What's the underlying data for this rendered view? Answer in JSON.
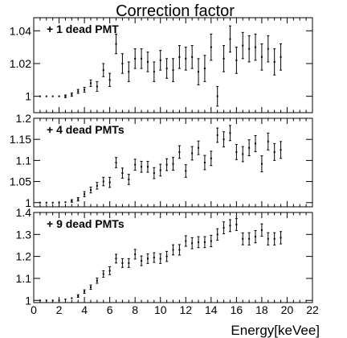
{
  "chart_data": {
    "title": "Correction factor",
    "xlabel": "Energy[keVee]",
    "x_ticks": [
      "0",
      "2",
      "4",
      "6",
      "8",
      "10",
      "12",
      "14",
      "16",
      "18",
      "20",
      "22"
    ],
    "xlim": [
      0,
      22
    ],
    "panels": [
      {
        "type": "scatter",
        "label": "+ 1 dead PMT",
        "ylim": [
          0.99,
          1.048
        ],
        "y_ticks": [
          {
            "value": 1.0,
            "label": "1"
          },
          {
            "value": 1.02,
            "label": "1.02"
          },
          {
            "value": 1.04,
            "label": "1.04"
          }
        ],
        "x": [
          0.5,
          1.0,
          1.5,
          2.0,
          2.5,
          3.0,
          3.5,
          4.0,
          4.5,
          5.0,
          5.5,
          6.0,
          6.5,
          7.0,
          7.5,
          8.0,
          8.5,
          9.0,
          9.5,
          10.0,
          10.5,
          11.0,
          11.5,
          12.0,
          12.5,
          13.0,
          13.5,
          14.0,
          14.5,
          15.0,
          15.5,
          16.0,
          16.5,
          17.0,
          17.5,
          18.0,
          18.5,
          19.0,
          19.5
        ],
        "y": [
          1.0,
          1.0,
          1.0,
          1.0,
          1.0,
          1.001,
          1.003,
          1.004,
          1.008,
          1.006,
          1.016,
          1.01,
          1.032,
          1.02,
          1.015,
          1.023,
          1.023,
          1.021,
          1.015,
          1.022,
          1.017,
          1.016,
          1.024,
          1.023,
          1.024,
          1.015,
          1.017,
          1.03,
          1.0,
          1.023,
          1.035,
          1.022,
          1.031,
          1.029,
          1.03,
          1.024,
          1.029,
          1.021,
          1.024
        ],
        "err": [
          0.0005,
          0.0005,
          0.0005,
          0.0005,
          0.0008,
          0.001,
          0.0012,
          0.0015,
          0.002,
          0.003,
          0.004,
          0.004,
          0.006,
          0.006,
          0.006,
          0.006,
          0.006,
          0.006,
          0.006,
          0.006,
          0.006,
          0.007,
          0.007,
          0.007,
          0.007,
          0.008,
          0.008,
          0.008,
          0.006,
          0.008,
          0.008,
          0.008,
          0.008,
          0.008,
          0.008,
          0.008,
          0.008,
          0.008,
          0.008
        ]
      },
      {
        "type": "scatter",
        "label": "+ 4 dead PMTs",
        "ylim": [
          0.99,
          1.2
        ],
        "y_ticks": [
          {
            "value": 1.0,
            "label": "1"
          },
          {
            "value": 1.05,
            "label": "1.05"
          },
          {
            "value": 1.1,
            "label": "1.1"
          },
          {
            "value": 1.15,
            "label": "1.15"
          },
          {
            "value": 1.2,
            "label": "1.2"
          }
        ],
        "x": [
          0.5,
          1.0,
          1.5,
          2.0,
          2.5,
          3.0,
          3.5,
          4.0,
          4.5,
          5.0,
          5.5,
          6.0,
          6.5,
          7.0,
          7.5,
          8.0,
          8.5,
          9.0,
          9.5,
          10.0,
          10.5,
          11.0,
          11.5,
          12.0,
          12.5,
          13.0,
          13.5,
          14.0,
          14.5,
          15.0,
          15.5,
          16.0,
          16.5,
          17.0,
          17.5,
          18.0,
          18.5,
          19.0,
          19.5
        ],
        "y": [
          1.0,
          1.0,
          1.0,
          1.0,
          1.001,
          1.004,
          1.008,
          1.02,
          1.03,
          1.04,
          1.05,
          1.048,
          1.095,
          1.07,
          1.055,
          1.09,
          1.085,
          1.085,
          1.07,
          1.077,
          1.09,
          1.092,
          1.12,
          1.075,
          1.117,
          1.13,
          1.095,
          1.105,
          1.16,
          1.15,
          1.165,
          1.12,
          1.115,
          1.13,
          1.14,
          1.092,
          1.145,
          1.12,
          1.125
        ],
        "err": [
          0.001,
          0.001,
          0.001,
          0.001,
          0.002,
          0.003,
          0.004,
          0.006,
          0.007,
          0.008,
          0.01,
          0.012,
          0.012,
          0.012,
          0.012,
          0.013,
          0.013,
          0.013,
          0.013,
          0.014,
          0.014,
          0.015,
          0.015,
          0.015,
          0.016,
          0.016,
          0.017,
          0.017,
          0.017,
          0.018,
          0.018,
          0.018,
          0.018,
          0.019,
          0.019,
          0.019,
          0.02,
          0.02,
          0.02
        ]
      },
      {
        "type": "scatter",
        "label": "+ 9 dead PMTs",
        "ylim": [
          0.99,
          1.4
        ],
        "y_ticks": [
          {
            "value": 1.0,
            "label": "1"
          },
          {
            "value": 1.1,
            "label": "1.1"
          },
          {
            "value": 1.2,
            "label": "1.2"
          },
          {
            "value": 1.3,
            "label": "1.3"
          },
          {
            "value": 1.4,
            "label": "1.4"
          }
        ],
        "x": [
          0.5,
          1.0,
          1.5,
          2.0,
          2.5,
          3.0,
          3.5,
          4.0,
          4.5,
          5.0,
          5.5,
          6.0,
          6.5,
          7.0,
          7.5,
          8.0,
          8.5,
          9.0,
          9.5,
          10.0,
          10.5,
          11.0,
          11.5,
          12.0,
          12.5,
          13.0,
          13.5,
          14.0,
          14.5,
          15.0,
          15.5,
          16.0,
          16.5,
          17.0,
          17.5,
          18.0,
          18.5,
          19.0,
          19.5
        ],
        "y": [
          1.0,
          1.0,
          1.0,
          1.0,
          1.005,
          1.01,
          1.02,
          1.04,
          1.06,
          1.09,
          1.12,
          1.135,
          1.19,
          1.17,
          1.17,
          1.21,
          1.18,
          1.19,
          1.195,
          1.19,
          1.2,
          1.23,
          1.23,
          1.27,
          1.26,
          1.265,
          1.265,
          1.27,
          1.3,
          1.33,
          1.34,
          1.345,
          1.28,
          1.28,
          1.29,
          1.32,
          1.28,
          1.28,
          1.285
        ],
        "err": [
          0.001,
          0.001,
          0.001,
          0.002,
          0.003,
          0.004,
          0.006,
          0.008,
          0.01,
          0.012,
          0.015,
          0.018,
          0.02,
          0.02,
          0.02,
          0.022,
          0.022,
          0.022,
          0.022,
          0.022,
          0.023,
          0.023,
          0.024,
          0.024,
          0.025,
          0.025,
          0.025,
          0.026,
          0.026,
          0.027,
          0.027,
          0.027,
          0.027,
          0.028,
          0.028,
          0.028,
          0.028,
          0.028,
          0.028
        ]
      }
    ]
  }
}
